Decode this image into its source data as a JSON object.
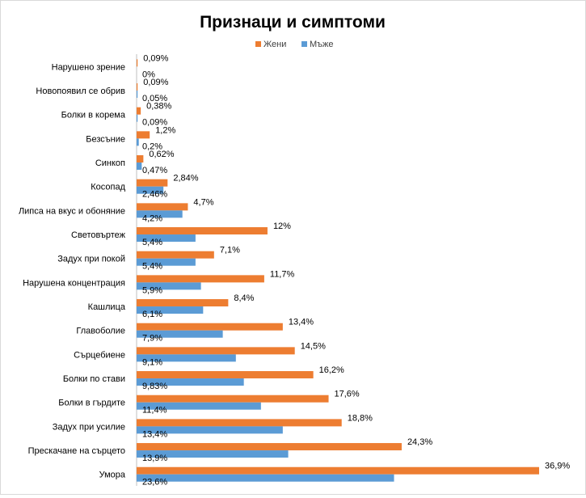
{
  "chart_data": {
    "type": "bar",
    "orientation": "horizontal",
    "title": "Признаци и симптоми",
    "xlabel": "",
    "ylabel": "",
    "xlim": [
      0,
      40
    ],
    "grid": false,
    "legend_position": "top",
    "categories": [
      "Нарушено зрение",
      "Новопоявил се обрив",
      "Болки в корема",
      "Безсъние",
      "Синкоп",
      "Косопад",
      "Липса на вкус и обоняние",
      "Световъртеж",
      "Задух при покой",
      "Нарушена концентрация",
      "Кашлица",
      "Главоболие",
      "Сърцебиене",
      "Болки по стави",
      "Болки в гърдите",
      "Задух при усилие",
      "Прескачане на сърцето",
      "Умора"
    ],
    "series": [
      {
        "name": "Жени",
        "color": "#ed7d31",
        "values": [
          0.09,
          0.09,
          0.38,
          1.2,
          0.62,
          2.84,
          4.7,
          12,
          7.1,
          11.7,
          8.4,
          13.4,
          14.5,
          16.2,
          17.6,
          18.8,
          24.3,
          36.9
        ],
        "labels": [
          "0,09%",
          "0,09%",
          "0,38%",
          "1,2%",
          "0,62%",
          "2,84%",
          "4,7%",
          "12%",
          "7,1%",
          "11,7%",
          "8,4%",
          "13,4%",
          "14,5%",
          "16,2%",
          "17,6%",
          "18,8%",
          "24,3%",
          "36,9%"
        ]
      },
      {
        "name": "Мъже",
        "color": "#5b9bd5",
        "values": [
          0,
          0.05,
          0.09,
          0.2,
          0.47,
          2.46,
          4.2,
          5.4,
          5.4,
          5.9,
          6.1,
          7.9,
          9.1,
          9.83,
          11.4,
          13.4,
          13.9,
          23.6
        ],
        "labels": [
          "0%",
          "0,05%",
          "0,09%",
          "0,2%",
          "0,47%",
          "2,46%",
          "4,2%",
          "5,4%",
          "5,4%",
          "5,9%",
          "6,1%",
          "7,9%",
          "9,1%",
          "9,83%",
          "11,4%",
          "13,4%",
          "13,9%",
          "23,6%"
        ]
      }
    ]
  }
}
